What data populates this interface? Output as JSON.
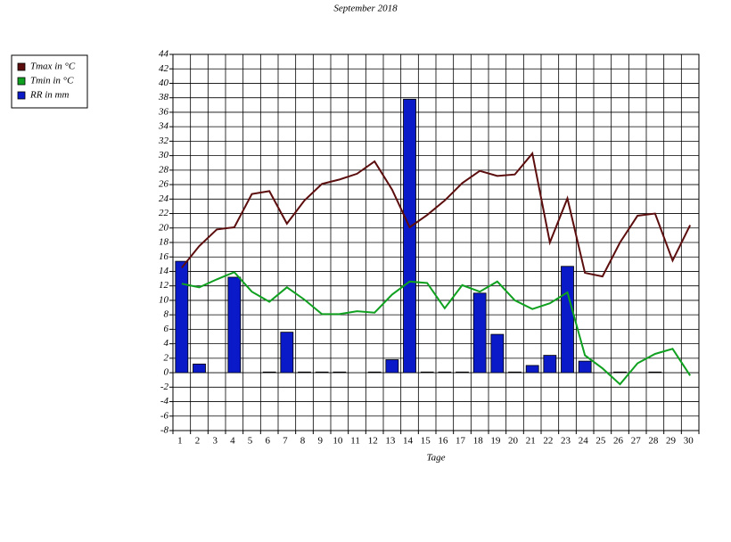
{
  "chart_data": {
    "type": "combo",
    "title": "September 2018",
    "x_label": "Tage",
    "categories": [
      "1",
      "2",
      "3",
      "4",
      "5",
      "6",
      "7",
      "8",
      "9",
      "10",
      "11",
      "12",
      "13",
      "14",
      "15",
      "16",
      "17",
      "18",
      "19",
      "20",
      "21",
      "22",
      "23",
      "24",
      "25",
      "26",
      "27",
      "28",
      "29",
      "30"
    ],
    "series": [
      {
        "name": "Tmax in °C",
        "kind": "line",
        "color": "#5c0d0d",
        "values": [
          14.5,
          17.5,
          19.8,
          20.1,
          24.7,
          25.1,
          20.6,
          23.8,
          26.1,
          26.7,
          27.5,
          29.2,
          25.3,
          20.1,
          21.8,
          23.8,
          26.2,
          27.9,
          27.2,
          27.4,
          30.3,
          18.0,
          24.1,
          13.8,
          13.3,
          18.0,
          21.7,
          22.0,
          15.5,
          20.4
        ]
      },
      {
        "name": "Tmin in °C",
        "kind": "line",
        "color": "#10a020",
        "values": [
          12.3,
          11.8,
          12.9,
          13.9,
          11.2,
          9.8,
          11.8,
          10.1,
          8.1,
          8.1,
          8.5,
          8.3,
          10.8,
          12.6,
          12.4,
          8.9,
          12.1,
          11.2,
          12.6,
          10.0,
          8.8,
          9.6,
          11.1,
          2.4,
          0.6,
          -1.6,
          1.3,
          2.6,
          3.3,
          -0.4
        ]
      },
      {
        "name": "RR in mm",
        "kind": "bar",
        "color": "#0a1ac8",
        "values": [
          15.4,
          1.2,
          0,
          13.2,
          0,
          0.1,
          5.6,
          0.1,
          0.1,
          0.1,
          0,
          0.1,
          1.8,
          37.8,
          0.1,
          0.1,
          0.1,
          11.0,
          5.3,
          0.1,
          1.0,
          2.4,
          14.7,
          1.6,
          0,
          0.1,
          0,
          0.1,
          0,
          0
        ]
      }
    ],
    "ylim": [
      -8,
      44
    ],
    "yticks": [
      -8,
      -6,
      -4,
      -2,
      0,
      2,
      4,
      6,
      8,
      10,
      12,
      14,
      16,
      18,
      20,
      22,
      24,
      26,
      28,
      30,
      32,
      34,
      36,
      38,
      40,
      42,
      44
    ],
    "grid": true
  }
}
